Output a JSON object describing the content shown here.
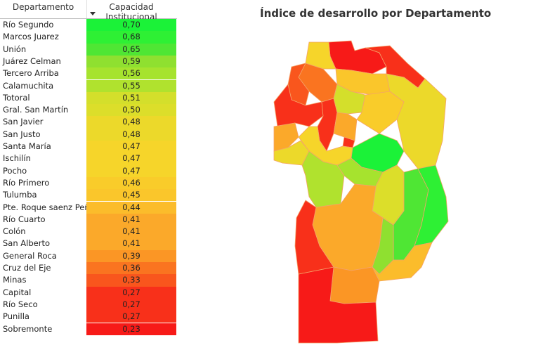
{
  "table": {
    "header": {
      "col1": "Departamento",
      "col2": "Capacidad Institucional"
    },
    "rows": [
      {
        "name": "Río Segundo",
        "value": "0,70",
        "color": "#1bf238"
      },
      {
        "name": "Marcos Juarez",
        "value": "0,68",
        "color": "#2ef034"
      },
      {
        "name": "Unión",
        "value": "0,65",
        "color": "#4fe634"
      },
      {
        "name": "Juárez Celman",
        "value": "0,59",
        "color": "#8fe030"
      },
      {
        "name": "Tercero Arriba",
        "value": "0,56",
        "color": "#a6e32e"
      },
      {
        "name": "Calamuchita",
        "value": "0,55",
        "color": "#b0e22e"
      },
      {
        "name": "Totoral",
        "value": "0,51",
        "color": "#d4df2b"
      },
      {
        "name": "Gral. San Martín",
        "value": "0,50",
        "color": "#dcde2a"
      },
      {
        "name": "San Javier",
        "value": "0,48",
        "color": "#ecd92a"
      },
      {
        "name": "San Justo",
        "value": "0,48",
        "color": "#ecd92a"
      },
      {
        "name": "Santa María",
        "value": "0,47",
        "color": "#f6d52a"
      },
      {
        "name": "Ischilín",
        "value": "0,47",
        "color": "#f6d52a"
      },
      {
        "name": "Pocho",
        "value": "0,47",
        "color": "#f6d52a"
      },
      {
        "name": "Río Primero",
        "value": "0,46",
        "color": "#f9cc2a"
      },
      {
        "name": "Tulumba",
        "value": "0,45",
        "color": "#fac62b"
      },
      {
        "name": "Pte. Roque saenz Peña",
        "value": "0,44",
        "color": "#fbbc2b"
      },
      {
        "name": "Río Cuarto",
        "value": "0,41",
        "color": "#fba92a"
      },
      {
        "name": "Colón",
        "value": "0,41",
        "color": "#fba92a"
      },
      {
        "name": "San Alberto",
        "value": "0,41",
        "color": "#fba92a"
      },
      {
        "name": "General Roca",
        "value": "0,39",
        "color": "#fb9625"
      },
      {
        "name": "Cruz del Eje",
        "value": "0,36",
        "color": "#fa7420"
      },
      {
        "name": "Minas",
        "value": "0,33",
        "color": "#f9561d"
      },
      {
        "name": "Capital",
        "value": "0,27",
        "color": "#f8301a"
      },
      {
        "name": "Río Seco",
        "value": "0,27",
        "color": "#f8301a"
      },
      {
        "name": "Punilla",
        "value": "0,27",
        "color": "#f8301a"
      },
      {
        "name": "Sobremonte",
        "value": "0,23",
        "color": "#f71a18"
      }
    ]
  },
  "map": {
    "title": "Índice de desarrollo por Departamento"
  }
}
